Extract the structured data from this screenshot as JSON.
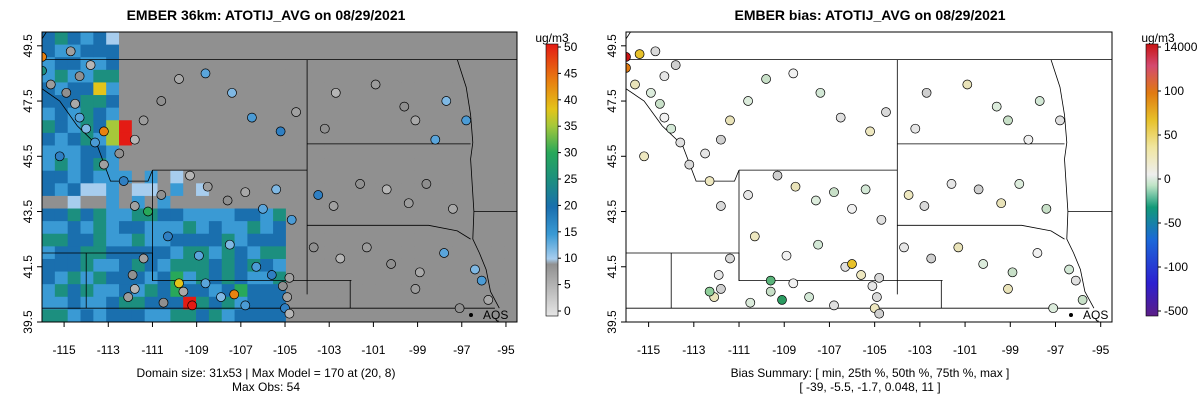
{
  "panels": [
    {
      "title": "EMBER 36km: ATOTIJ_AVG on 08/29/2021",
      "caption_lines": [
        "Domain size: 31x53 | Max Model = 170 at (20, 8)",
        "Max Obs: 54"
      ],
      "site_label": "AQS",
      "legend_title": "ug/m3",
      "legend_ticks": [
        "0",
        "5",
        "10",
        "15",
        "20",
        "25",
        "30",
        "35",
        "40",
        "45",
        "50"
      ]
    },
    {
      "title": "EMBER bias: ATOTIJ_AVG on 08/29/2021",
      "caption_lines": [
        "Bias Summary: [ min, 25th %, 50th %, 75th %, max ]",
        "[ -39,   -5.5,   -1.7,   0.048,   11 ]"
      ],
      "site_label": "AQS",
      "legend_title": "ug/m3",
      "legend_ticks": [
        "14000",
        "100",
        "50",
        "0",
        "-50",
        "-100",
        "-500"
      ]
    }
  ],
  "chart_data": [
    {
      "type": "heatmap",
      "title": "EMBER 36km: ATOTIJ_AVG on 08/29/2021",
      "xlim": [
        -116,
        -94.5
      ],
      "ylim": [
        39.5,
        50
      ],
      "x_ticks": [
        "-115",
        "-113",
        "-111",
        "-109",
        "-107",
        "-105",
        "-103",
        "-101",
        "-99",
        "-97",
        "-95"
      ],
      "y_ticks": [
        "39.5",
        "41.5",
        "43.5",
        "45.5",
        "47.5",
        "49.5"
      ],
      "legend": "right",
      "colorbar": {
        "title": "ug/m3",
        "min": 0,
        "max": 50,
        "ticks": [
          0,
          5,
          10,
          15,
          20,
          25,
          30,
          35,
          40,
          45,
          50
        ]
      },
      "grid": false,
      "domain_size": "31x53",
      "max_model": 170,
      "max_model_at": [
        20,
        8
      ],
      "max_obs": 54,
      "hotspots": [
        {
          "lon": -112.2,
          "lat": 46.3,
          "value": 50
        },
        {
          "lon": -112.6,
          "lat": 46.3,
          "value": 35
        },
        {
          "lon": -113.6,
          "lat": 47.8,
          "value": 38
        },
        {
          "lon": -109.2,
          "lat": 40.2,
          "value": 45
        },
        {
          "lon": -109.9,
          "lat": 40.9,
          "value": 30
        },
        {
          "lon": -107.2,
          "lat": 40.6,
          "value": 27
        }
      ]
    },
    {
      "type": "scatter",
      "title": "EMBER bias: ATOTIJ_AVG on 08/29/2021",
      "xlim": [
        -116,
        -94.5
      ],
      "ylim": [
        39.5,
        50
      ],
      "x_ticks": [
        "-115",
        "-113",
        "-111",
        "-109",
        "-107",
        "-105",
        "-103",
        "-101",
        "-99",
        "-97",
        "-95"
      ],
      "y_ticks": [
        "39.5",
        "41.5",
        "43.5",
        "45.5",
        "47.5",
        "49.5"
      ],
      "legend": "right",
      "colorbar": {
        "title": "ug/m3",
        "ticks": [
          14000,
          100,
          50,
          0,
          -50,
          -100,
          -500
        ]
      },
      "grid": false,
      "bias_summary": {
        "min": -39,
        "p25": -5.5,
        "p50": -1.7,
        "p75": 0.048,
        "max": 11
      }
    }
  ]
}
